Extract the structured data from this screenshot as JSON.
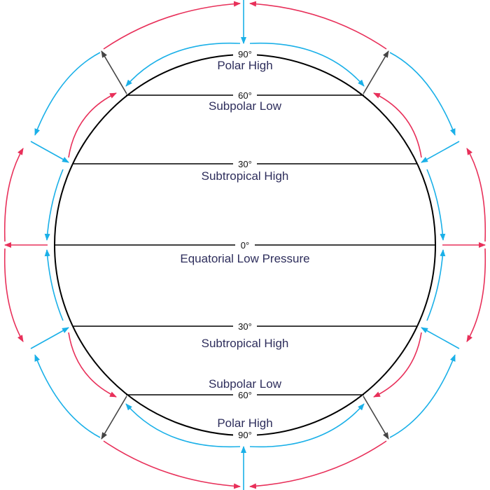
{
  "colors": {
    "pink": "#e8305a",
    "cyan": "#1ab0e8",
    "grey": "#444444",
    "label": "#2e2e5c"
  },
  "latitudes": {
    "north_pole": "90°",
    "north_60": "60°",
    "north_30": "30°",
    "equator": "0°",
    "south_30": "30°",
    "south_60": "60°",
    "south_pole": "90°"
  },
  "zones": {
    "north_polar_high": "Polar High",
    "north_subpolar_low": "Subpolar Low",
    "north_subtropical_high": "Subtropical High",
    "equatorial_low": "Equatorial Low Pressure",
    "south_subtropical_high": "Subtropical High",
    "south_subpolar_low": "Subpolar Low",
    "south_polar_high": "Polar High"
  }
}
